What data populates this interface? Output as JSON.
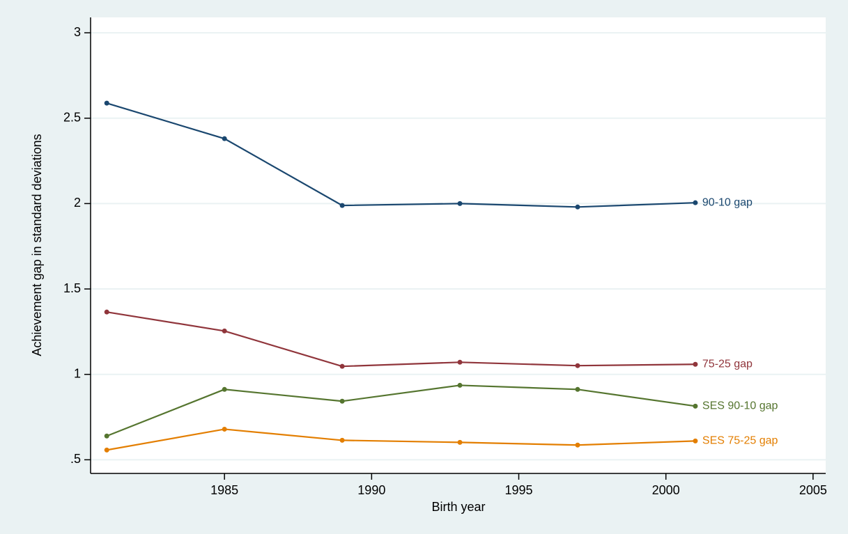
{
  "chart_data": {
    "type": "line",
    "x_label": "Birth year",
    "y_label": "Achievement gap in standard deviations",
    "x": [
      1981,
      1985,
      1989,
      1993,
      1997,
      2001
    ],
    "series": [
      {
        "name": "90-10 gap",
        "color": "#1a476f",
        "values": [
          2.588,
          2.38,
          1.989,
          2.0,
          1.98,
          2.005
        ]
      },
      {
        "name": "75-25 gap",
        "color": "#90353b",
        "values": [
          1.365,
          1.254,
          1.047,
          1.071,
          1.051,
          1.059
        ]
      },
      {
        "name": "SES 90-10 gap",
        "color": "#55752f",
        "values": [
          0.639,
          0.912,
          0.843,
          0.936,
          0.912,
          0.814
        ]
      },
      {
        "name": "SES 75-25 gap",
        "color": "#e37e00",
        "values": [
          0.557,
          0.679,
          0.614,
          0.602,
          0.586,
          0.61
        ]
      }
    ],
    "xlim": [
      1980.45,
      2005.43
    ],
    "xticks": [
      1985,
      1990,
      1995,
      2000,
      2005
    ],
    "ylim": [
      0.42,
      3.09
    ],
    "yticks": [
      {
        "value": 0.5,
        "label": ".5"
      },
      1,
      1.5,
      2,
      2.5,
      3
    ],
    "grid": true
  }
}
